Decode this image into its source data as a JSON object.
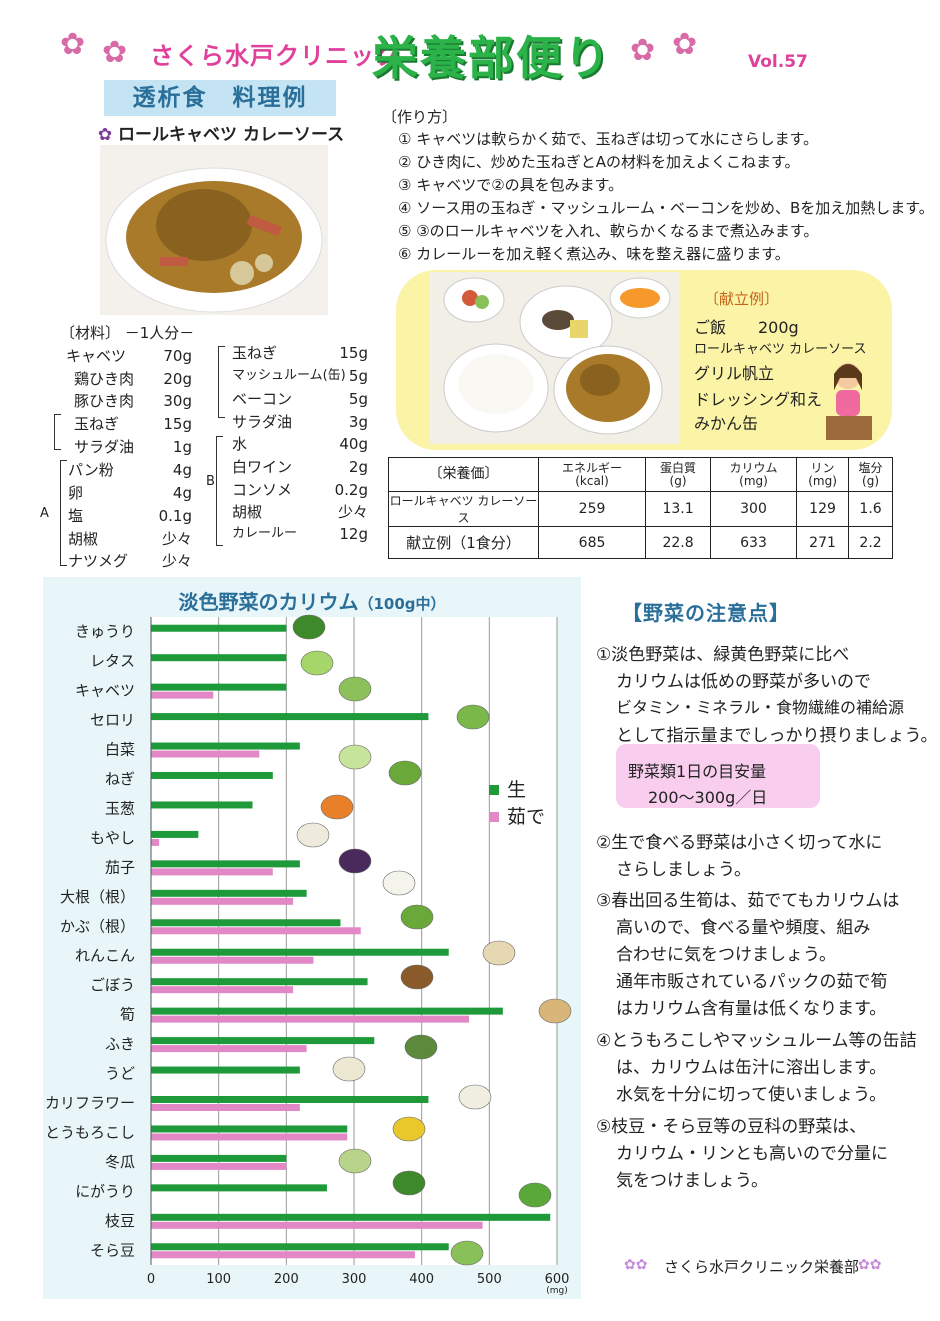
{
  "header": {
    "clinic_name": "さくら水戸クリニック",
    "title": "栄養部便り",
    "volume": "Vol.57"
  },
  "recipe": {
    "section_title": "透析食　料理例",
    "dish_name": "ロールキャベツ カレーソース",
    "materials_heading": "〔材料〕 －1人分－",
    "materials_left": [
      {
        "name": "キャベツ",
        "amount": "70g"
      },
      {
        "name": "鶏ひき肉",
        "amount": "20g"
      },
      {
        "name": "豚ひき肉",
        "amount": "30g"
      },
      {
        "name": "玉ねぎ",
        "amount": "15g"
      },
      {
        "name": "サラダ油",
        "amount": "1g"
      },
      {
        "name": "パン粉",
        "amount": "4g"
      },
      {
        "name": "卵",
        "amount": "4g"
      },
      {
        "name": "塩",
        "amount": "0.1g"
      },
      {
        "name": "胡椒",
        "amount": "少々"
      },
      {
        "name": "ナツメグ",
        "amount": "少々"
      }
    ],
    "materials_right": [
      {
        "name": "玉ねぎ",
        "amount": "15g"
      },
      {
        "name": "マッシュルーム(缶)",
        "amount": "5g"
      },
      {
        "name": "ベーコン",
        "amount": "5g"
      },
      {
        "name": "サラダ油",
        "amount": "3g"
      },
      {
        "name": "水",
        "amount": "40g"
      },
      {
        "name": "白ワイン",
        "amount": "2g"
      },
      {
        "name": "コンソメ",
        "amount": "0.2g"
      },
      {
        "name": "胡椒",
        "amount": "少々"
      },
      {
        "name": "カレールー",
        "amount": "12g"
      }
    ],
    "group_a": "A",
    "group_b": "B",
    "method_heading": "〔作り方〕",
    "steps": [
      "① キャベツは軟らかく茹で、玉ねぎは切って水にさらします。",
      "② ひき肉に、炒めた玉ねぎとAの材料を加えよくこねます。",
      "③ キャベツで②の具を包みます。",
      "④ ソース用の玉ねぎ・マッシュルーム・ベーコンを炒め、Bを加え加熱します。",
      "⑤ ③のロールキャベツを入れ、軟らかくなるまで煮込みます。",
      "⑥ カレールーを加え軽く煮込み、味を整え器に盛ります。"
    ]
  },
  "menu": {
    "heading": "〔献立例〕",
    "items": [
      "ご飯　　200g",
      "ロールキャベツ カレーソース",
      "グリル帆立",
      "ドレッシング和え",
      "みかん缶"
    ]
  },
  "nutrition": {
    "headers": [
      "〔栄養価〕",
      "エネルギー\n(kcal)",
      "蛋白質\n(g)",
      "カリウム\n(mg)",
      "リン\n(mg)",
      "塩分\n(g)"
    ],
    "rows": [
      [
        "ロールキャベツ カレーソース",
        "259",
        "13.1",
        "300",
        "129",
        "1.6"
      ],
      [
        "献立例（1食分）",
        "685",
        "22.8",
        "633",
        "271",
        "2.2"
      ]
    ]
  },
  "chart_data": {
    "type": "bar",
    "orientation": "horizontal",
    "title": "淡色野菜のカリウム",
    "title_suffix": "（100g中）",
    "xlabel": "(mg)",
    "xlim": [
      0,
      600
    ],
    "xticks": [
      "0",
      "100",
      "200",
      "300",
      "400",
      "500",
      "600"
    ],
    "grid": true,
    "legend_placement": "right",
    "categories": [
      "きゅうり",
      "レタス",
      "キャベツ",
      "セロリ",
      "白菜",
      "ねぎ",
      "玉葱",
      "もやし",
      "茄子",
      "大根（根）",
      "かぶ（根）",
      "れんこん",
      "ごぼう",
      "筍",
      "ふき",
      "うど",
      "カリフラワー",
      "とうもろこし",
      "冬瓜",
      "にがうり",
      "枝豆",
      "そら豆"
    ],
    "series": [
      {
        "name": "生",
        "color": "#1e9a3a",
        "values": [
          200,
          200,
          200,
          410,
          220,
          180,
          150,
          70,
          220,
          230,
          280,
          440,
          320,
          520,
          330,
          220,
          410,
          290,
          200,
          260,
          590,
          440
        ]
      },
      {
        "name": "茹で",
        "color": "#e388c6",
        "values": [
          null,
          null,
          92,
          null,
          160,
          null,
          null,
          12,
          180,
          210,
          310,
          240,
          210,
          470,
          230,
          null,
          220,
          290,
          200,
          null,
          490,
          390
        ]
      }
    ]
  },
  "notes": {
    "title": "【野菜の注意点】",
    "point1": [
      "①淡色野菜は、緑黄色野菜に比べ",
      "カリウムは低めの野菜が多いので",
      "ビタミン・ミネラル・食物繊維の補給源",
      "として指示量までしっかり摂りましょう。"
    ],
    "box": [
      "野菜類1日の目安量",
      "200～300g／日"
    ],
    "point2": [
      "②生で食べる野菜は小さく切って水に",
      "さらしましょう。"
    ],
    "point3": [
      "③春出回る生筍は、茹でてもカリウムは",
      "高いので、食べる量や頻度、組み",
      "合わせに気をつけましょう。",
      "通年市販されているパックの茹で筍",
      "はカリウム含有量は低くなります。"
    ],
    "point4": [
      "④とうもろこしやマッシュルーム等の缶詰",
      "は、カリウムは缶汁に溶出します。",
      "水気を十分に切って使いましょう。"
    ],
    "point5": [
      "⑤枝豆・そら豆等の豆科の野菜は、",
      "カリウム・リンとも高いので分量に",
      "気をつけましょう。"
    ],
    "footer": "さくら水戸クリニック栄養部"
  }
}
